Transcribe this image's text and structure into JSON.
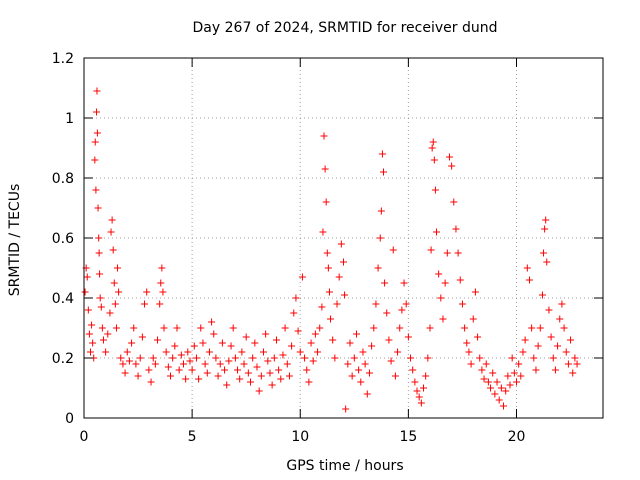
{
  "chart_data": {
    "type": "scatter",
    "title": "Day 267 of 2024, SRMTID for receiver dund",
    "xlabel": "GPS time / hours",
    "ylabel": "SRMTID / TECUs",
    "xlim": [
      0,
      24
    ],
    "ylim": [
      0,
      1.2
    ],
    "xticks": [
      0,
      5,
      10,
      15,
      20
    ],
    "yticks": [
      0,
      0.2,
      0.4,
      0.6,
      0.8,
      1,
      1.2
    ],
    "ytick_labels": [
      "0",
      "0.2",
      "0.4",
      "0.6",
      "0.8",
      "1",
      "1.2"
    ],
    "grid": true,
    "marker": "+",
    "series_color": "#ff0000",
    "series": [
      {
        "name": "SRMTID",
        "points": [
          [
            0.05,
            0.42
          ],
          [
            0.1,
            0.5
          ],
          [
            0.15,
            0.47
          ],
          [
            0.2,
            0.36
          ],
          [
            0.25,
            0.28
          ],
          [
            0.3,
            0.22
          ],
          [
            0.35,
            0.31
          ],
          [
            0.4,
            0.25
          ],
          [
            0.45,
            0.2
          ],
          [
            0.5,
            0.86
          ],
          [
            0.52,
            0.92
          ],
          [
            0.55,
            0.76
          ],
          [
            0.58,
            1.02
          ],
          [
            0.6,
            1.09
          ],
          [
            0.62,
            0.95
          ],
          [
            0.65,
            0.7
          ],
          [
            0.68,
            0.6
          ],
          [
            0.7,
            0.55
          ],
          [
            0.72,
            0.48
          ],
          [
            0.75,
            0.4
          ],
          [
            0.8,
            0.37
          ],
          [
            0.85,
            0.3
          ],
          [
            0.9,
            0.26
          ],
          [
            1.0,
            0.22
          ],
          [
            1.1,
            0.28
          ],
          [
            1.2,
            0.35
          ],
          [
            1.25,
            0.62
          ],
          [
            1.3,
            0.66
          ],
          [
            1.35,
            0.56
          ],
          [
            1.4,
            0.45
          ],
          [
            1.45,
            0.38
          ],
          [
            1.5,
            0.3
          ],
          [
            1.55,
            0.5
          ],
          [
            1.6,
            0.42
          ],
          [
            1.7,
            0.2
          ],
          [
            1.8,
            0.18
          ],
          [
            1.9,
            0.15
          ],
          [
            2.0,
            0.22
          ],
          [
            2.1,
            0.19
          ],
          [
            2.2,
            0.25
          ],
          [
            2.3,
            0.3
          ],
          [
            2.4,
            0.18
          ],
          [
            2.5,
            0.14
          ],
          [
            2.6,
            0.2
          ],
          [
            2.7,
            0.27
          ],
          [
            2.8,
            0.38
          ],
          [
            2.9,
            0.42
          ],
          [
            3.0,
            0.16
          ],
          [
            3.1,
            0.12
          ],
          [
            3.2,
            0.2
          ],
          [
            3.3,
            0.18
          ],
          [
            3.4,
            0.26
          ],
          [
            3.5,
            0.38
          ],
          [
            3.55,
            0.45
          ],
          [
            3.6,
            0.5
          ],
          [
            3.65,
            0.42
          ],
          [
            3.7,
            0.3
          ],
          [
            3.8,
            0.22
          ],
          [
            3.9,
            0.17
          ],
          [
            4.0,
            0.14
          ],
          [
            4.1,
            0.2
          ],
          [
            4.2,
            0.24
          ],
          [
            4.3,
            0.3
          ],
          [
            4.4,
            0.16
          ],
          [
            4.5,
            0.21
          ],
          [
            4.6,
            0.18
          ],
          [
            4.7,
            0.13
          ],
          [
            4.8,
            0.22
          ],
          [
            4.9,
            0.19
          ],
          [
            5.0,
            0.16
          ],
          [
            5.1,
            0.24
          ],
          [
            5.2,
            0.2
          ],
          [
            5.3,
            0.13
          ],
          [
            5.4,
            0.3
          ],
          [
            5.5,
            0.25
          ],
          [
            5.6,
            0.18
          ],
          [
            5.7,
            0.15
          ],
          [
            5.8,
            0.22
          ],
          [
            5.9,
            0.32
          ],
          [
            6.0,
            0.28
          ],
          [
            6.1,
            0.2
          ],
          [
            6.2,
            0.14
          ],
          [
            6.3,
            0.18
          ],
          [
            6.4,
            0.25
          ],
          [
            6.5,
            0.16
          ],
          [
            6.6,
            0.11
          ],
          [
            6.7,
            0.19
          ],
          [
            6.8,
            0.24
          ],
          [
            6.9,
            0.3
          ],
          [
            7.0,
            0.2
          ],
          [
            7.1,
            0.16
          ],
          [
            7.2,
            0.13
          ],
          [
            7.3,
            0.22
          ],
          [
            7.4,
            0.18
          ],
          [
            7.5,
            0.27
          ],
          [
            7.6,
            0.15
          ],
          [
            7.7,
            0.12
          ],
          [
            7.8,
            0.2
          ],
          [
            7.9,
            0.25
          ],
          [
            8.0,
            0.17
          ],
          [
            8.1,
            0.09
          ],
          [
            8.2,
            0.14
          ],
          [
            8.3,
            0.22
          ],
          [
            8.4,
            0.28
          ],
          [
            8.5,
            0.19
          ],
          [
            8.6,
            0.15
          ],
          [
            8.7,
            0.11
          ],
          [
            8.8,
            0.2
          ],
          [
            8.9,
            0.26
          ],
          [
            9.0,
            0.16
          ],
          [
            9.1,
            0.13
          ],
          [
            9.2,
            0.21
          ],
          [
            9.3,
            0.3
          ],
          [
            9.4,
            0.18
          ],
          [
            9.5,
            0.14
          ],
          [
            9.6,
            0.24
          ],
          [
            9.7,
            0.35
          ],
          [
            9.8,
            0.4
          ],
          [
            9.9,
            0.29
          ],
          [
            10.0,
            0.22
          ],
          [
            10.1,
            0.47
          ],
          [
            10.2,
            0.2
          ],
          [
            10.3,
            0.16
          ],
          [
            10.4,
            0.12
          ],
          [
            10.5,
            0.25
          ],
          [
            10.6,
            0.19
          ],
          [
            10.7,
            0.28
          ],
          [
            10.8,
            0.22
          ],
          [
            10.9,
            0.3
          ],
          [
            11.0,
            0.37
          ],
          [
            11.05,
            0.62
          ],
          [
            11.1,
            0.94
          ],
          [
            11.15,
            0.83
          ],
          [
            11.2,
            0.72
          ],
          [
            11.25,
            0.55
          ],
          [
            11.3,
            0.5
          ],
          [
            11.35,
            0.42
          ],
          [
            11.4,
            0.33
          ],
          [
            11.5,
            0.26
          ],
          [
            11.6,
            0.2
          ],
          [
            11.7,
            0.38
          ],
          [
            11.8,
            0.47
          ],
          [
            11.9,
            0.58
          ],
          [
            12.0,
            0.52
          ],
          [
            12.05,
            0.41
          ],
          [
            12.1,
            0.03
          ],
          [
            12.2,
            0.18
          ],
          [
            12.3,
            0.25
          ],
          [
            12.4,
            0.14
          ],
          [
            12.5,
            0.2
          ],
          [
            12.6,
            0.28
          ],
          [
            12.7,
            0.16
          ],
          [
            12.8,
            0.12
          ],
          [
            12.9,
            0.22
          ],
          [
            13.0,
            0.18
          ],
          [
            13.1,
            0.08
          ],
          [
            13.2,
            0.15
          ],
          [
            13.3,
            0.24
          ],
          [
            13.4,
            0.3
          ],
          [
            13.5,
            0.38
          ],
          [
            13.6,
            0.5
          ],
          [
            13.7,
            0.6
          ],
          [
            13.75,
            0.69
          ],
          [
            13.8,
            0.88
          ],
          [
            13.85,
            0.82
          ],
          [
            13.9,
            0.45
          ],
          [
            14.0,
            0.35
          ],
          [
            14.1,
            0.26
          ],
          [
            14.2,
            0.19
          ],
          [
            14.3,
            0.56
          ],
          [
            14.4,
            0.14
          ],
          [
            14.5,
            0.22
          ],
          [
            14.6,
            0.3
          ],
          [
            14.7,
            0.36
          ],
          [
            14.8,
            0.45
          ],
          [
            14.9,
            0.38
          ],
          [
            15.0,
            0.27
          ],
          [
            15.1,
            0.2
          ],
          [
            15.2,
            0.16
          ],
          [
            15.3,
            0.12
          ],
          [
            15.4,
            0.09
          ],
          [
            15.5,
            0.07
          ],
          [
            15.6,
            0.05
          ],
          [
            15.7,
            0.1
          ],
          [
            15.8,
            0.14
          ],
          [
            15.9,
            0.2
          ],
          [
            16.0,
            0.3
          ],
          [
            16.05,
            0.56
          ],
          [
            16.1,
            0.9
          ],
          [
            16.15,
            0.92
          ],
          [
            16.2,
            0.86
          ],
          [
            16.25,
            0.76
          ],
          [
            16.3,
            0.62
          ],
          [
            16.4,
            0.48
          ],
          [
            16.5,
            0.4
          ],
          [
            16.6,
            0.33
          ],
          [
            16.7,
            0.45
          ],
          [
            16.8,
            0.55
          ],
          [
            16.9,
            0.87
          ],
          [
            17.0,
            0.84
          ],
          [
            17.1,
            0.72
          ],
          [
            17.2,
            0.63
          ],
          [
            17.3,
            0.55
          ],
          [
            17.4,
            0.46
          ],
          [
            17.5,
            0.38
          ],
          [
            17.6,
            0.3
          ],
          [
            17.7,
            0.25
          ],
          [
            17.8,
            0.22
          ],
          [
            17.9,
            0.18
          ],
          [
            18.0,
            0.33
          ],
          [
            18.1,
            0.42
          ],
          [
            18.2,
            0.27
          ],
          [
            18.3,
            0.2
          ],
          [
            18.4,
            0.16
          ],
          [
            18.5,
            0.13
          ],
          [
            18.6,
            0.18
          ],
          [
            18.7,
            0.12
          ],
          [
            18.8,
            0.1
          ],
          [
            18.9,
            0.15
          ],
          [
            19.0,
            0.08
          ],
          [
            19.1,
            0.12
          ],
          [
            19.2,
            0.06
          ],
          [
            19.3,
            0.1
          ],
          [
            19.4,
            0.04
          ],
          [
            19.5,
            0.09
          ],
          [
            19.6,
            0.14
          ],
          [
            19.7,
            0.11
          ],
          [
            19.8,
            0.2
          ],
          [
            19.9,
            0.15
          ],
          [
            20.0,
            0.12
          ],
          [
            20.1,
            0.18
          ],
          [
            20.2,
            0.14
          ],
          [
            20.3,
            0.22
          ],
          [
            20.4,
            0.26
          ],
          [
            20.5,
            0.5
          ],
          [
            20.6,
            0.46
          ],
          [
            20.7,
            0.3
          ],
          [
            20.8,
            0.2
          ],
          [
            20.9,
            0.16
          ],
          [
            21.0,
            0.24
          ],
          [
            21.1,
            0.3
          ],
          [
            21.2,
            0.41
          ],
          [
            21.25,
            0.55
          ],
          [
            21.3,
            0.63
          ],
          [
            21.35,
            0.66
          ],
          [
            21.4,
            0.52
          ],
          [
            21.5,
            0.36
          ],
          [
            21.6,
            0.27
          ],
          [
            21.7,
            0.2
          ],
          [
            21.8,
            0.16
          ],
          [
            21.9,
            0.24
          ],
          [
            22.0,
            0.33
          ],
          [
            22.1,
            0.38
          ],
          [
            22.2,
            0.3
          ],
          [
            22.3,
            0.22
          ],
          [
            22.4,
            0.18
          ],
          [
            22.5,
            0.26
          ],
          [
            22.6,
            0.15
          ],
          [
            22.7,
            0.2
          ],
          [
            22.8,
            0.18
          ]
        ]
      }
    ]
  }
}
